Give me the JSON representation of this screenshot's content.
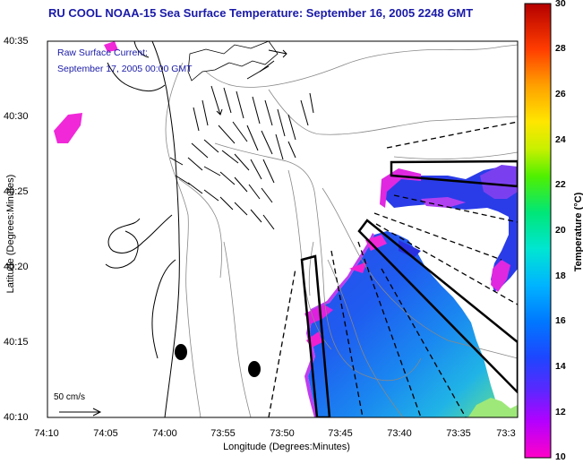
{
  "title": "RU COOL  NOAA-15  Sea Surface Temperature:  September 16, 2005 2248 GMT",
  "current_label_line1": "Raw Surface Current:",
  "current_label_line2": "September 17, 2005 00:00 GMT",
  "y_axis_title": "Latitude (Degrees:Minutes)",
  "x_axis_title": "Longitude (Degrees:Minutes)",
  "y_ticks": [
    "40:35",
    "40:30",
    "40:25",
    "40:20",
    "40:15",
    "40:10"
  ],
  "x_ticks": [
    "74:10",
    "74:05",
    "74:00",
    "73:55",
    "73:50",
    "73:45",
    "73:40",
    "73:35",
    "73:3"
  ],
  "scale_label": "50 cm/s",
  "colorbar_title": "Temperature (°C)",
  "colorbar_ticks": [
    "30",
    "28",
    "26",
    "24",
    "22",
    "20",
    "18",
    "16",
    "14",
    "12",
    "10"
  ],
  "colors": {
    "title": "#1a1aa8",
    "land_line": "#000000",
    "bathymetry": "#888888"
  }
}
